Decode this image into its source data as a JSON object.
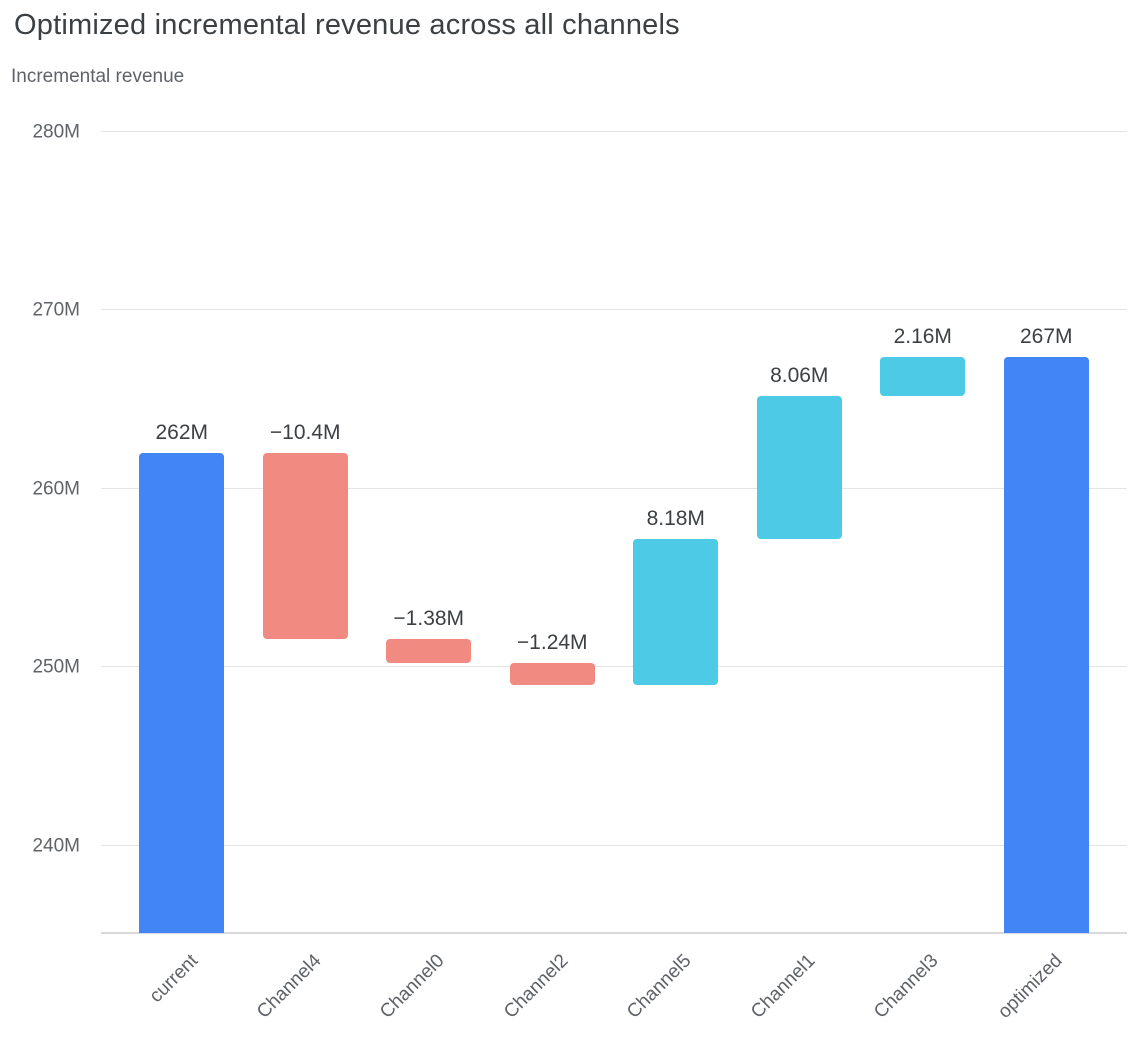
{
  "header": {
    "title": "Optimized incremental revenue across all channels",
    "subtitle": "Incremental revenue"
  },
  "chart_data": {
    "type": "bar",
    "subtype": "waterfall",
    "title": "Optimized incremental revenue across all channels",
    "axis_title": "Incremental revenue",
    "xlabel": "",
    "ylabel": "Incremental revenue",
    "unit": "M",
    "categories": [
      "current",
      "Channel4",
      "Channel0",
      "Channel2",
      "Channel5",
      "Channel1",
      "Channel3",
      "optimized"
    ],
    "steps": [
      {
        "label": "current",
        "kind": "total",
        "value": 262,
        "display": "262M"
      },
      {
        "label": "Channel4",
        "kind": "decrease",
        "value": -10.4,
        "display": "−10.4M"
      },
      {
        "label": "Channel0",
        "kind": "decrease",
        "value": -1.38,
        "display": "−1.38M"
      },
      {
        "label": "Channel2",
        "kind": "decrease",
        "value": -1.24,
        "display": "−1.24M"
      },
      {
        "label": "Channel5",
        "kind": "increase",
        "value": 8.18,
        "display": "8.18M"
      },
      {
        "label": "Channel1",
        "kind": "increase",
        "value": 8.06,
        "display": "8.06M"
      },
      {
        "label": "Channel3",
        "kind": "increase",
        "value": 2.16,
        "display": "2.16M"
      },
      {
        "label": "optimized",
        "kind": "total",
        "value": 267.38,
        "display": "267M"
      }
    ],
    "yticks": [
      {
        "value": 240,
        "label": "240M"
      },
      {
        "value": 250,
        "label": "250M"
      },
      {
        "value": 260,
        "label": "260M"
      },
      {
        "value": 270,
        "label": "270M"
      },
      {
        "value": 280,
        "label": "280M"
      }
    ],
    "ylim": [
      235.1,
      280
    ],
    "grid": true,
    "legend": "none",
    "colors": {
      "total": "#4285f4",
      "increase": "#4dcbe6",
      "decrease": "#f18b81",
      "grid_line": "#e3e4e7",
      "axis_line": "#d9dade",
      "title_text": "#3c4043",
      "label_text": "#5f6368"
    }
  }
}
